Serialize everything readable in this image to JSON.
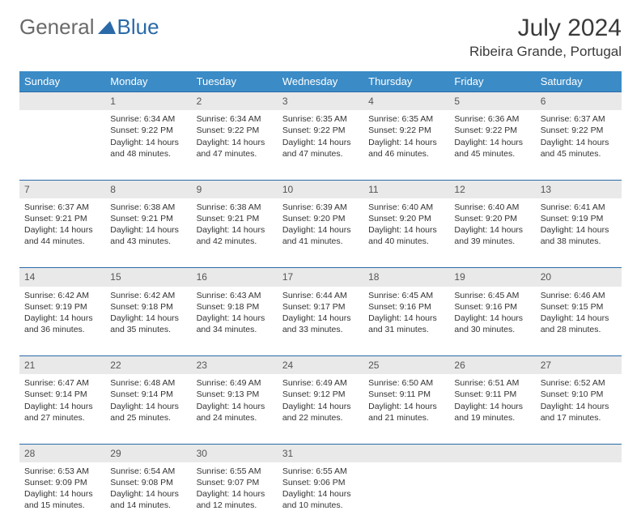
{
  "logo": {
    "part1": "General",
    "part2": "Blue"
  },
  "title": "July 2024",
  "location": "Ribeira Grande, Portugal",
  "header_bg": "#3b8bc6",
  "daynum_bg": "#e9e9e9",
  "border_color": "#2a6aa8",
  "weekdays": [
    "Sunday",
    "Monday",
    "Tuesday",
    "Wednesday",
    "Thursday",
    "Friday",
    "Saturday"
  ],
  "weeks": [
    {
      "nums": [
        "",
        "1",
        "2",
        "3",
        "4",
        "5",
        "6"
      ],
      "cells": [
        null,
        {
          "sunrise": "Sunrise: 6:34 AM",
          "sunset": "Sunset: 9:22 PM",
          "day1": "Daylight: 14 hours",
          "day2": "and 48 minutes."
        },
        {
          "sunrise": "Sunrise: 6:34 AM",
          "sunset": "Sunset: 9:22 PM",
          "day1": "Daylight: 14 hours",
          "day2": "and 47 minutes."
        },
        {
          "sunrise": "Sunrise: 6:35 AM",
          "sunset": "Sunset: 9:22 PM",
          "day1": "Daylight: 14 hours",
          "day2": "and 47 minutes."
        },
        {
          "sunrise": "Sunrise: 6:35 AM",
          "sunset": "Sunset: 9:22 PM",
          "day1": "Daylight: 14 hours",
          "day2": "and 46 minutes."
        },
        {
          "sunrise": "Sunrise: 6:36 AM",
          "sunset": "Sunset: 9:22 PM",
          "day1": "Daylight: 14 hours",
          "day2": "and 45 minutes."
        },
        {
          "sunrise": "Sunrise: 6:37 AM",
          "sunset": "Sunset: 9:22 PM",
          "day1": "Daylight: 14 hours",
          "day2": "and 45 minutes."
        }
      ]
    },
    {
      "nums": [
        "7",
        "8",
        "9",
        "10",
        "11",
        "12",
        "13"
      ],
      "cells": [
        {
          "sunrise": "Sunrise: 6:37 AM",
          "sunset": "Sunset: 9:21 PM",
          "day1": "Daylight: 14 hours",
          "day2": "and 44 minutes."
        },
        {
          "sunrise": "Sunrise: 6:38 AM",
          "sunset": "Sunset: 9:21 PM",
          "day1": "Daylight: 14 hours",
          "day2": "and 43 minutes."
        },
        {
          "sunrise": "Sunrise: 6:38 AM",
          "sunset": "Sunset: 9:21 PM",
          "day1": "Daylight: 14 hours",
          "day2": "and 42 minutes."
        },
        {
          "sunrise": "Sunrise: 6:39 AM",
          "sunset": "Sunset: 9:20 PM",
          "day1": "Daylight: 14 hours",
          "day2": "and 41 minutes."
        },
        {
          "sunrise": "Sunrise: 6:40 AM",
          "sunset": "Sunset: 9:20 PM",
          "day1": "Daylight: 14 hours",
          "day2": "and 40 minutes."
        },
        {
          "sunrise": "Sunrise: 6:40 AM",
          "sunset": "Sunset: 9:20 PM",
          "day1": "Daylight: 14 hours",
          "day2": "and 39 minutes."
        },
        {
          "sunrise": "Sunrise: 6:41 AM",
          "sunset": "Sunset: 9:19 PM",
          "day1": "Daylight: 14 hours",
          "day2": "and 38 minutes."
        }
      ]
    },
    {
      "nums": [
        "14",
        "15",
        "16",
        "17",
        "18",
        "19",
        "20"
      ],
      "cells": [
        {
          "sunrise": "Sunrise: 6:42 AM",
          "sunset": "Sunset: 9:19 PM",
          "day1": "Daylight: 14 hours",
          "day2": "and 36 minutes."
        },
        {
          "sunrise": "Sunrise: 6:42 AM",
          "sunset": "Sunset: 9:18 PM",
          "day1": "Daylight: 14 hours",
          "day2": "and 35 minutes."
        },
        {
          "sunrise": "Sunrise: 6:43 AM",
          "sunset": "Sunset: 9:18 PM",
          "day1": "Daylight: 14 hours",
          "day2": "and 34 minutes."
        },
        {
          "sunrise": "Sunrise: 6:44 AM",
          "sunset": "Sunset: 9:17 PM",
          "day1": "Daylight: 14 hours",
          "day2": "and 33 minutes."
        },
        {
          "sunrise": "Sunrise: 6:45 AM",
          "sunset": "Sunset: 9:16 PM",
          "day1": "Daylight: 14 hours",
          "day2": "and 31 minutes."
        },
        {
          "sunrise": "Sunrise: 6:45 AM",
          "sunset": "Sunset: 9:16 PM",
          "day1": "Daylight: 14 hours",
          "day2": "and 30 minutes."
        },
        {
          "sunrise": "Sunrise: 6:46 AM",
          "sunset": "Sunset: 9:15 PM",
          "day1": "Daylight: 14 hours",
          "day2": "and 28 minutes."
        }
      ]
    },
    {
      "nums": [
        "21",
        "22",
        "23",
        "24",
        "25",
        "26",
        "27"
      ],
      "cells": [
        {
          "sunrise": "Sunrise: 6:47 AM",
          "sunset": "Sunset: 9:14 PM",
          "day1": "Daylight: 14 hours",
          "day2": "and 27 minutes."
        },
        {
          "sunrise": "Sunrise: 6:48 AM",
          "sunset": "Sunset: 9:14 PM",
          "day1": "Daylight: 14 hours",
          "day2": "and 25 minutes."
        },
        {
          "sunrise": "Sunrise: 6:49 AM",
          "sunset": "Sunset: 9:13 PM",
          "day1": "Daylight: 14 hours",
          "day2": "and 24 minutes."
        },
        {
          "sunrise": "Sunrise: 6:49 AM",
          "sunset": "Sunset: 9:12 PM",
          "day1": "Daylight: 14 hours",
          "day2": "and 22 minutes."
        },
        {
          "sunrise": "Sunrise: 6:50 AM",
          "sunset": "Sunset: 9:11 PM",
          "day1": "Daylight: 14 hours",
          "day2": "and 21 minutes."
        },
        {
          "sunrise": "Sunrise: 6:51 AM",
          "sunset": "Sunset: 9:11 PM",
          "day1": "Daylight: 14 hours",
          "day2": "and 19 minutes."
        },
        {
          "sunrise": "Sunrise: 6:52 AM",
          "sunset": "Sunset: 9:10 PM",
          "day1": "Daylight: 14 hours",
          "day2": "and 17 minutes."
        }
      ]
    },
    {
      "nums": [
        "28",
        "29",
        "30",
        "31",
        "",
        "",
        ""
      ],
      "cells": [
        {
          "sunrise": "Sunrise: 6:53 AM",
          "sunset": "Sunset: 9:09 PM",
          "day1": "Daylight: 14 hours",
          "day2": "and 15 minutes."
        },
        {
          "sunrise": "Sunrise: 6:54 AM",
          "sunset": "Sunset: 9:08 PM",
          "day1": "Daylight: 14 hours",
          "day2": "and 14 minutes."
        },
        {
          "sunrise": "Sunrise: 6:55 AM",
          "sunset": "Sunset: 9:07 PM",
          "day1": "Daylight: 14 hours",
          "day2": "and 12 minutes."
        },
        {
          "sunrise": "Sunrise: 6:55 AM",
          "sunset": "Sunset: 9:06 PM",
          "day1": "Daylight: 14 hours",
          "day2": "and 10 minutes."
        },
        null,
        null,
        null
      ]
    }
  ]
}
